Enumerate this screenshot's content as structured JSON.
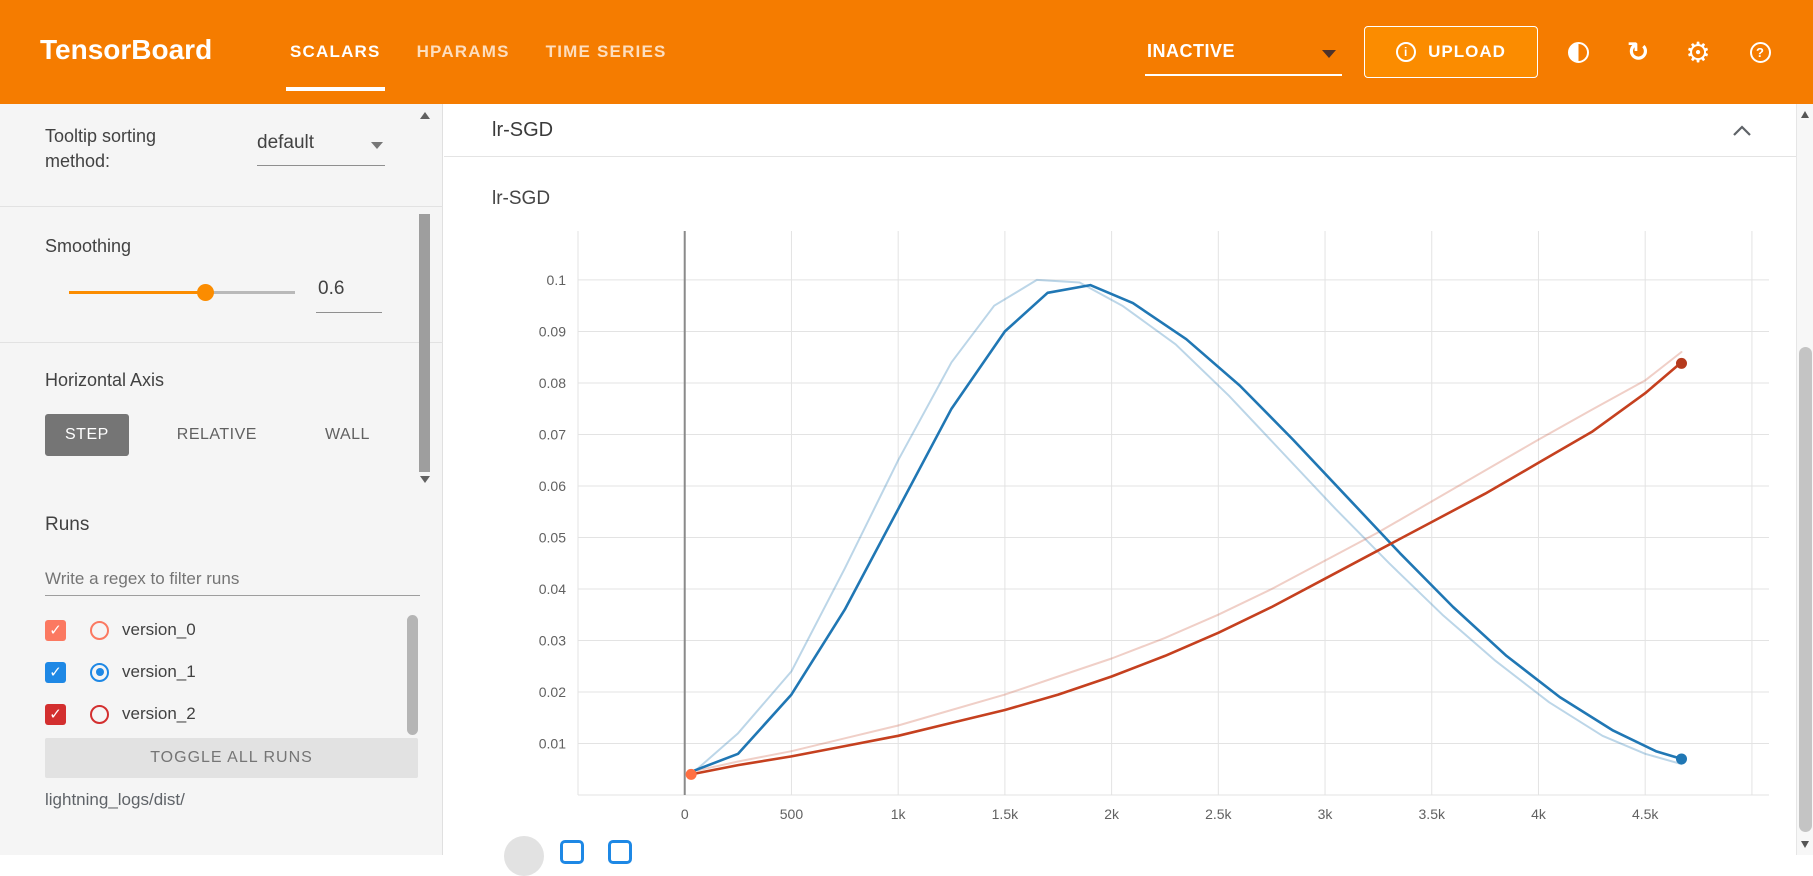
{
  "icons": {
    "info": "i",
    "refresh": "↻",
    "gear": "⚙",
    "help": "?",
    "check": "✓"
  },
  "colors": {
    "toolbar": "#f57c00",
    "accent": "#f57c00",
    "slider": "#fb8c00"
  },
  "toolbar": {
    "title": "TensorBoard",
    "tabs": [
      {
        "label": "SCALARS",
        "active": true
      },
      {
        "label": "HPARAMS",
        "active": false
      },
      {
        "label": "TIME SERIES",
        "active": false
      }
    ],
    "status_dropdown": {
      "value": "INACTIVE"
    },
    "upload": {
      "label": "UPLOAD"
    }
  },
  "sidebar": {
    "tooltip_sorting": {
      "label": "Tooltip sorting method:",
      "value": "default"
    },
    "smoothing": {
      "label": "Smoothing",
      "value": "0.6",
      "fraction": 0.6
    },
    "horizontal_axis": {
      "label": "Horizontal Axis",
      "options": [
        {
          "label": "STEP",
          "active": true
        },
        {
          "label": "RELATIVE",
          "active": false
        },
        {
          "label": "WALL",
          "active": false
        }
      ]
    },
    "runs": {
      "label": "Runs",
      "filter_placeholder": "Write a regex to filter runs",
      "items": [
        {
          "name": "version_0",
          "color": "#fb7961",
          "checked": true,
          "radio_selected": false
        },
        {
          "name": "version_1",
          "color": "#1e88e5",
          "checked": true,
          "radio_selected": true
        },
        {
          "name": "version_2",
          "color": "#d32f2f",
          "checked": true,
          "radio_selected": false
        }
      ],
      "toggle_all_label": "TOGGLE ALL RUNS",
      "log_dir": "lightning_logs/dist/"
    }
  },
  "main": {
    "group_title": "lr-SGD"
  },
  "chart_data": {
    "type": "line",
    "title": "lr-SGD",
    "xlabel": "",
    "ylabel": "",
    "x_domain": [
      -500,
      5080
    ],
    "y_domain": [
      0,
      0.1095
    ],
    "grid": true,
    "legend_position": "none",
    "zero_line_x": 0,
    "x_ticks": [
      {
        "v": -500,
        "label": ""
      },
      {
        "v": 0,
        "label": "0"
      },
      {
        "v": 500,
        "label": "500"
      },
      {
        "v": 1000,
        "label": "1k"
      },
      {
        "v": 1500,
        "label": "1.5k"
      },
      {
        "v": 2000,
        "label": "2k"
      },
      {
        "v": 2500,
        "label": "2.5k"
      },
      {
        "v": 3000,
        "label": "3k"
      },
      {
        "v": 3500,
        "label": "3.5k"
      },
      {
        "v": 4000,
        "label": "4k"
      },
      {
        "v": 4500,
        "label": "4.5k"
      },
      {
        "v": 5000,
        "label": ""
      }
    ],
    "y_ticks": [
      {
        "v": 0,
        "label": ""
      },
      {
        "v": 0.01,
        "label": "0.01"
      },
      {
        "v": 0.02,
        "label": "0.02"
      },
      {
        "v": 0.03,
        "label": "0.03"
      },
      {
        "v": 0.04,
        "label": "0.04"
      },
      {
        "v": 0.05,
        "label": "0.05"
      },
      {
        "v": 0.06,
        "label": "0.06"
      },
      {
        "v": 0.07,
        "label": "0.07"
      },
      {
        "v": 0.08,
        "label": "0.08"
      },
      {
        "v": 0.09,
        "label": "0.09"
      },
      {
        "v": 0.1,
        "label": "0.1"
      }
    ],
    "series": [
      {
        "name": "version_1 (original)",
        "color": "#2077b4",
        "opacity": 0.3,
        "width": 2,
        "points": [
          [
            30,
            0.004
          ],
          [
            250,
            0.012
          ],
          [
            500,
            0.024
          ],
          [
            750,
            0.044
          ],
          [
            1000,
            0.065
          ],
          [
            1250,
            0.084
          ],
          [
            1450,
            0.095
          ],
          [
            1650,
            0.1
          ],
          [
            1850,
            0.0995
          ],
          [
            2050,
            0.095
          ],
          [
            2300,
            0.0875
          ],
          [
            2550,
            0.0775
          ],
          [
            2800,
            0.0665
          ],
          [
            3050,
            0.0555
          ],
          [
            3300,
            0.045
          ],
          [
            3550,
            0.035
          ],
          [
            3800,
            0.026
          ],
          [
            4050,
            0.018
          ],
          [
            4300,
            0.0115
          ],
          [
            4500,
            0.008
          ],
          [
            4670,
            0.006
          ]
        ]
      },
      {
        "name": "version_2 (original)",
        "color": "#c5401f",
        "opacity": 0.25,
        "width": 2,
        "points": [
          [
            30,
            0.0045
          ],
          [
            250,
            0.0065
          ],
          [
            500,
            0.0085
          ],
          [
            750,
            0.011
          ],
          [
            1000,
            0.0135
          ],
          [
            1250,
            0.0165
          ],
          [
            1500,
            0.0195
          ],
          [
            1750,
            0.023
          ],
          [
            2000,
            0.0265
          ],
          [
            2250,
            0.0305
          ],
          [
            2500,
            0.035
          ],
          [
            2750,
            0.04
          ],
          [
            3000,
            0.0455
          ],
          [
            3250,
            0.051
          ],
          [
            3500,
            0.057
          ],
          [
            3750,
            0.063
          ],
          [
            4000,
            0.069
          ],
          [
            4250,
            0.0748
          ],
          [
            4500,
            0.0805
          ],
          [
            4670,
            0.086
          ]
        ]
      },
      {
        "name": "version_1 (smoothed 0.6)",
        "color": "#2077b4",
        "opacity": 1,
        "width": 2.6,
        "points": [
          [
            30,
            0.0045
          ],
          [
            250,
            0.008
          ],
          [
            500,
            0.0195
          ],
          [
            750,
            0.036
          ],
          [
            1000,
            0.0555
          ],
          [
            1250,
            0.075
          ],
          [
            1500,
            0.09
          ],
          [
            1700,
            0.0975
          ],
          [
            1900,
            0.099
          ],
          [
            2100,
            0.0955
          ],
          [
            2350,
            0.0885
          ],
          [
            2600,
            0.0795
          ],
          [
            2850,
            0.069
          ],
          [
            3100,
            0.058
          ],
          [
            3350,
            0.047
          ],
          [
            3600,
            0.0365
          ],
          [
            3850,
            0.027
          ],
          [
            4100,
            0.019
          ],
          [
            4350,
            0.0125
          ],
          [
            4550,
            0.0085
          ],
          [
            4670,
            0.007
          ]
        ]
      },
      {
        "name": "version_2 (smoothed 0.6)",
        "color": "#c5401f",
        "opacity": 1,
        "width": 2.6,
        "points": [
          [
            30,
            0.004
          ],
          [
            250,
            0.0058
          ],
          [
            500,
            0.0075
          ],
          [
            750,
            0.0095
          ],
          [
            1000,
            0.0115
          ],
          [
            1250,
            0.014
          ],
          [
            1500,
            0.0165
          ],
          [
            1750,
            0.0195
          ],
          [
            2000,
            0.023
          ],
          [
            2250,
            0.027
          ],
          [
            2500,
            0.0315
          ],
          [
            2750,
            0.0365
          ],
          [
            3000,
            0.042
          ],
          [
            3250,
            0.0475
          ],
          [
            3500,
            0.053
          ],
          [
            3750,
            0.0585
          ],
          [
            4000,
            0.0645
          ],
          [
            4250,
            0.0705
          ],
          [
            4500,
            0.078
          ],
          [
            4670,
            0.084
          ]
        ]
      }
    ],
    "markers": [
      {
        "x": 30,
        "y": 0.004,
        "r": 5.5,
        "color": "#ff7043"
      },
      {
        "x": 4670,
        "y": 0.007,
        "r": 5.5,
        "color": "#2077b4"
      },
      {
        "x": 4670,
        "y": 0.0838,
        "r": 5.5,
        "color": "#b53a1d"
      }
    ]
  }
}
